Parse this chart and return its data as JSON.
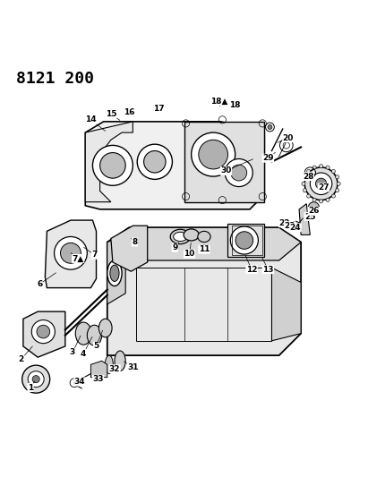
{
  "title": "8121 200",
  "background_color": "#ffffff",
  "line_color": "#000000",
  "title_fontsize": 13,
  "title_fontweight": "bold",
  "figsize": [
    4.11,
    5.33
  ],
  "dpi": 100
}
